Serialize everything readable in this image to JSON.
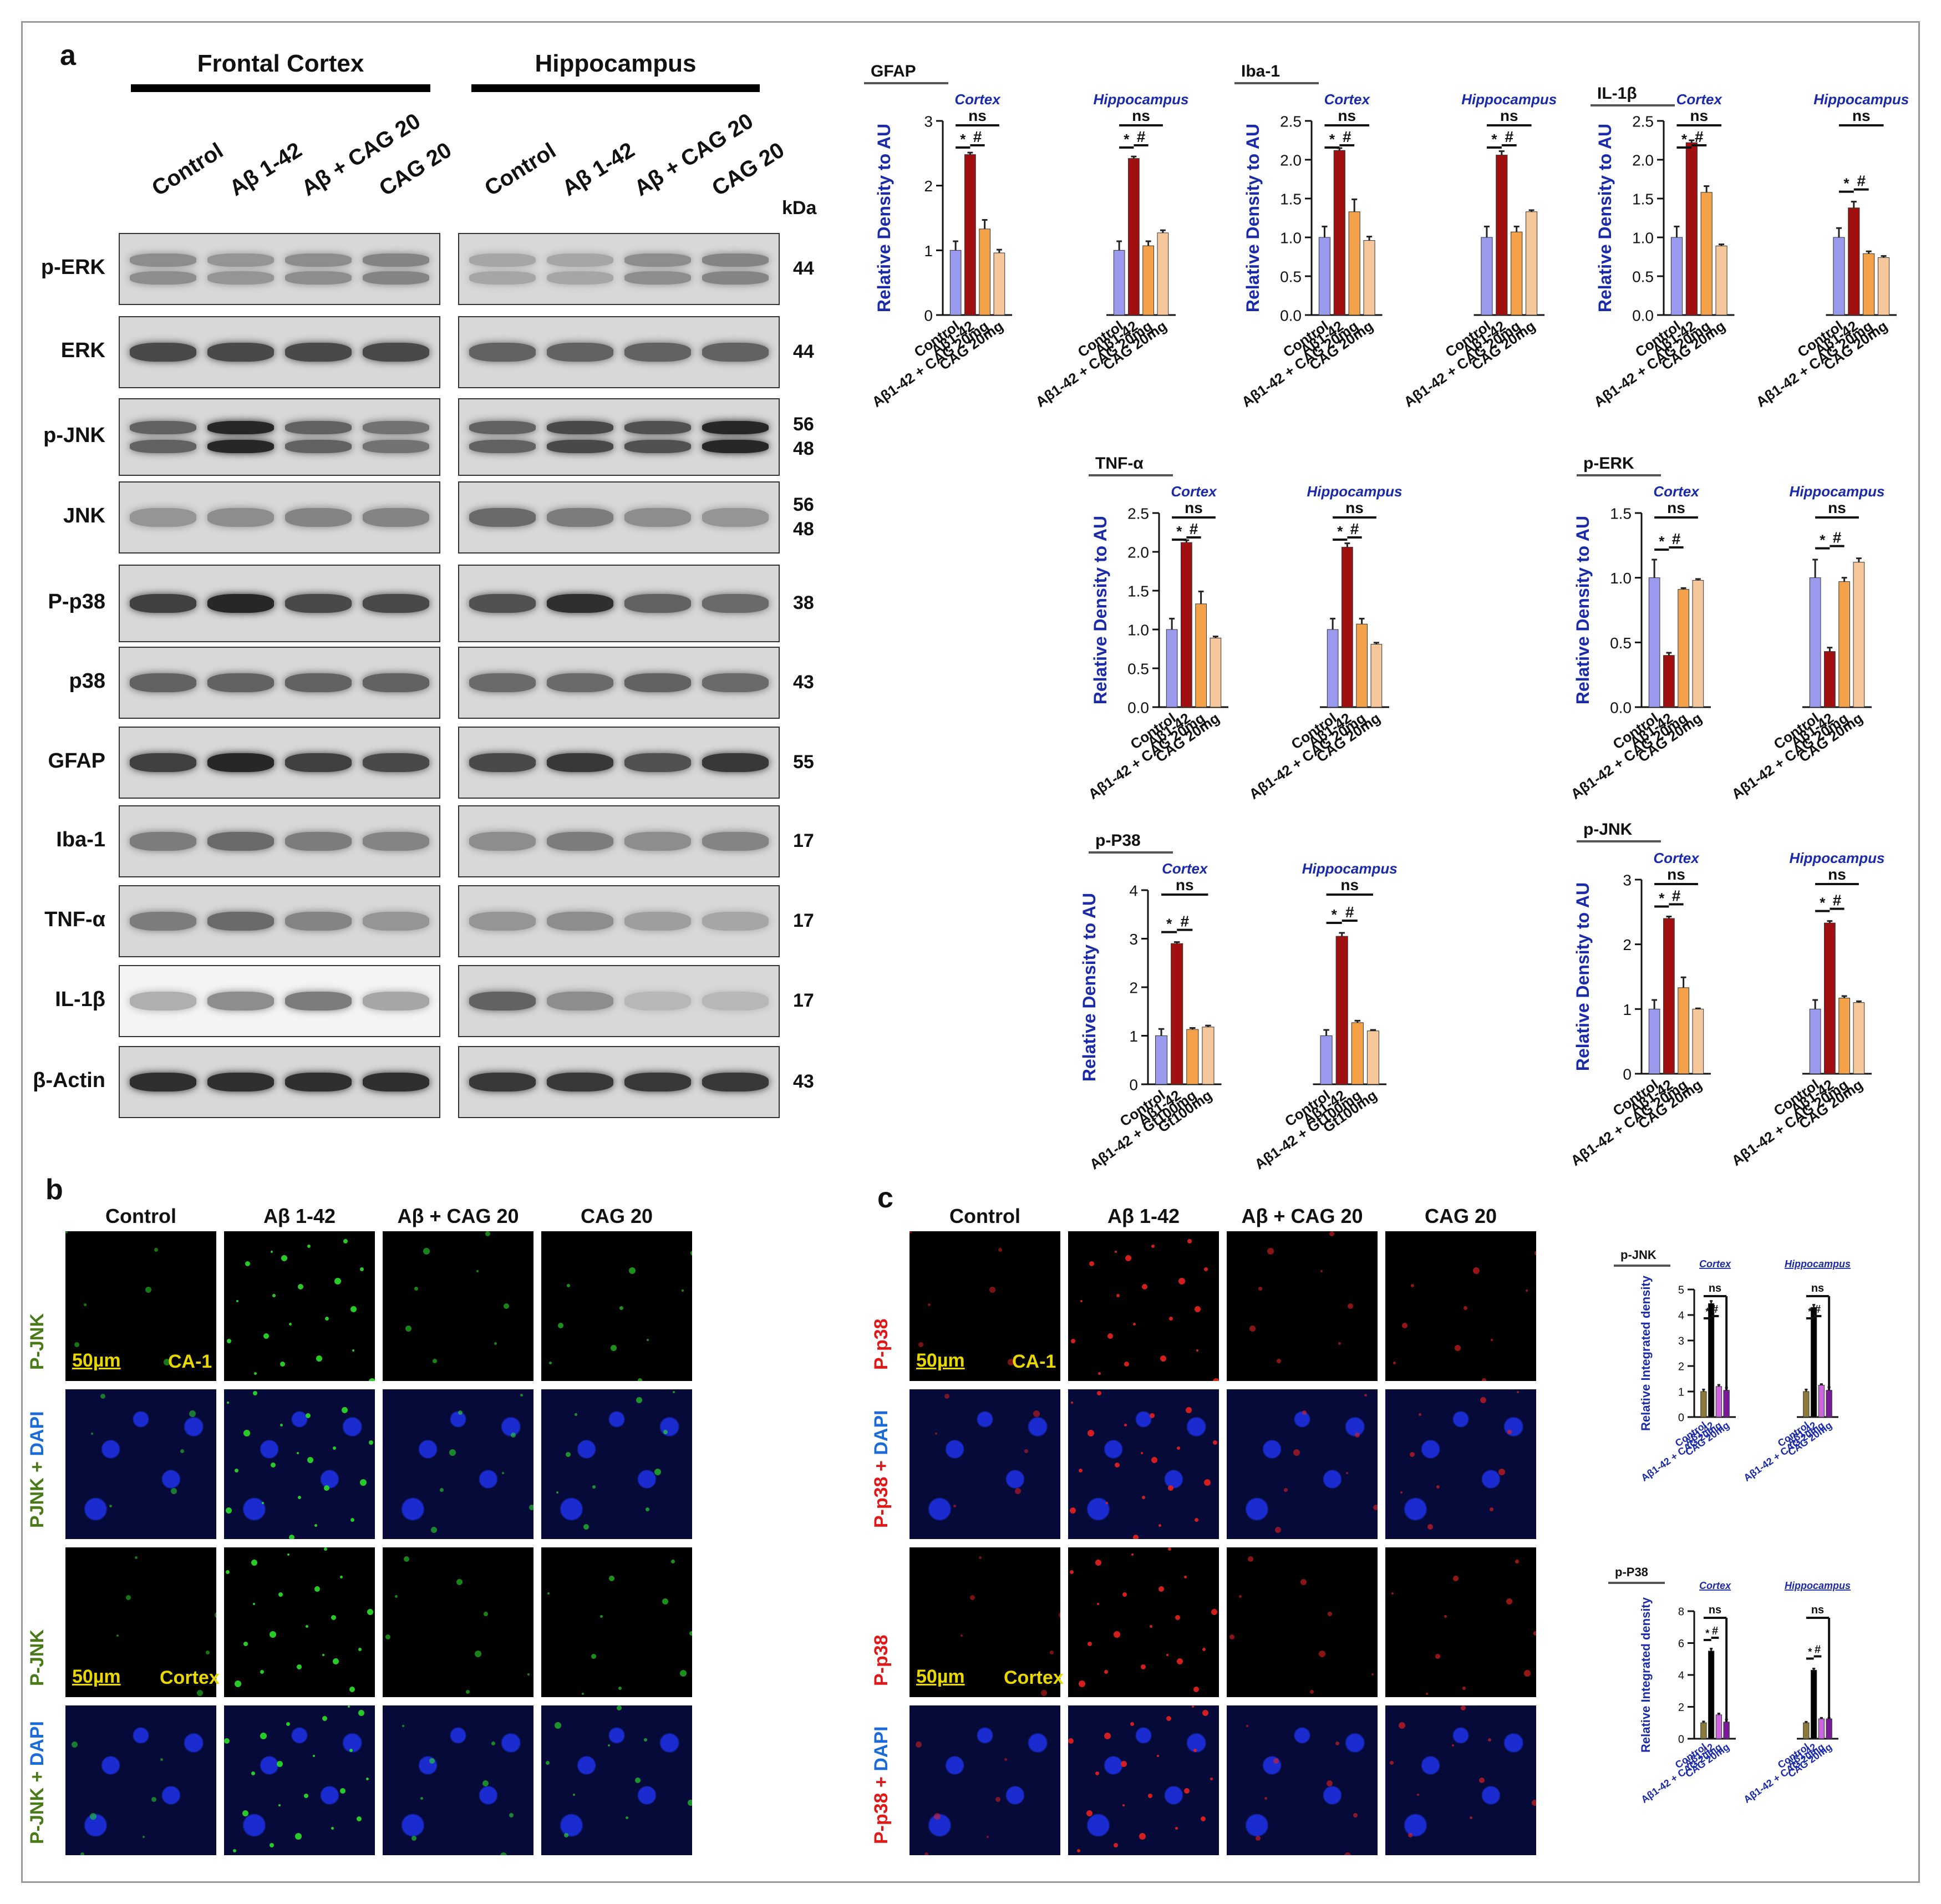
{
  "panels": {
    "a": "a",
    "b": "b",
    "c": "c"
  },
  "western": {
    "regions": [
      "Frontal Cortex",
      "Hippocampus"
    ],
    "lanes": [
      "Control",
      "Aβ 1-42",
      "Aβ + CAG 20",
      "CAG 20"
    ],
    "kda_header": "kDa",
    "rows": [
      {
        "label": "p-ERK",
        "kda": "44"
      },
      {
        "label": "ERK",
        "kda": "44"
      },
      {
        "label": "p-JNK",
        "kda": "56\n48"
      },
      {
        "label": "JNK",
        "kda": "56\n48"
      },
      {
        "label": "P-p38",
        "kda": "38"
      },
      {
        "label": "p38",
        "kda": "43"
      },
      {
        "label": "GFAP",
        "kda": "55"
      },
      {
        "label": "Iba-1",
        "kda": "17"
      },
      {
        "label": "TNF-α",
        "kda": "17"
      },
      {
        "label": "IL-1β",
        "kda": "17"
      },
      {
        "label": "β-Actin",
        "kda": "43"
      }
    ]
  },
  "colors": {
    "control": "#9999ee",
    "abeta": "#a01010",
    "combo": "#f4a24a",
    "cag": "#f6c79a",
    "ctl_b": "#8b7a3a",
    "ab_b": "#000000",
    "combo_b": "#cc66dd",
    "cag_b": "#7a1a99",
    "axis": "#111111",
    "ylabel": "#1a2aa8",
    "group": "#1a2aa8"
  },
  "chart_data": [
    {
      "type": "bar",
      "title": "GFAP",
      "ylabel": "Relative Density to AU",
      "groups": [
        "Cortex",
        "Hippocampus"
      ],
      "categories": [
        "Control",
        "Aβ1-42",
        "Aβ1-42 + CAG 20mg",
        "CAG 20mg"
      ],
      "series": [
        {
          "values": [
            1.0,
            2.48,
            1.33,
            0.96
          ]
        },
        {
          "values": [
            1.0,
            2.42,
            1.07,
            1.27
          ]
        }
      ],
      "errors": [
        [
          0.14,
          0.03,
          0.14,
          0.05
        ],
        [
          0.14,
          0.03,
          0.07,
          0.04
        ]
      ],
      "ylim": [
        0,
        3
      ],
      "yticks": [
        "0",
        "1",
        "2",
        "3"
      ],
      "sig": {
        "star": "*",
        "hash": "#",
        "ns": "ns"
      }
    },
    {
      "type": "bar",
      "title": "Iba-1",
      "ylabel": "Relative Density to AU",
      "groups": [
        "Cortex",
        "Hippocampus"
      ],
      "categories": [
        "Control",
        "Aβ1-42",
        "Aβ1-42 + CAG 20mg",
        "CAG 20mg"
      ],
      "series": [
        {
          "values": [
            1.0,
            2.12,
            1.33,
            0.96
          ]
        },
        {
          "values": [
            1.0,
            2.06,
            1.07,
            1.33
          ]
        }
      ],
      "errors": [
        [
          0.14,
          0.03,
          0.16,
          0.05
        ],
        [
          0.14,
          0.05,
          0.07,
          0.02
        ]
      ],
      "ylim": [
        0,
        2.5
      ],
      "yticks": [
        "0.0",
        "0.5",
        "1.0",
        "1.5",
        "2.0",
        "2.5"
      ],
      "sig": {
        "star": "*",
        "hash": "#",
        "ns": "ns"
      }
    },
    {
      "type": "bar",
      "title": "IL-1β",
      "ylabel": "Relative Density to AU",
      "groups": [
        "Cortex",
        "Hippocampus"
      ],
      "categories": [
        "Control",
        "Aβ1-42",
        "Aβ1-42 + CAG 20mg",
        "CAG 20mg"
      ],
      "series": [
        {
          "values": [
            1.0,
            2.22,
            1.58,
            0.89
          ]
        },
        {
          "values": [
            1.0,
            1.38,
            0.79,
            0.74
          ]
        }
      ],
      "errors": [
        [
          0.14,
          0.03,
          0.08,
          0.02
        ],
        [
          0.12,
          0.08,
          0.03,
          0.02
        ]
      ],
      "ylim": [
        0,
        2.5
      ],
      "yticks": [
        "0.0",
        "0.5",
        "1.0",
        "1.5",
        "2.0",
        "2.5"
      ],
      "sig": {
        "star": "*",
        "hash": "#",
        "ns": "ns"
      }
    },
    {
      "type": "bar",
      "title": "TNF-α",
      "ylabel": "Relative Density to AU",
      "groups": [
        "Cortex",
        "Hippocampus"
      ],
      "categories": [
        "Control",
        "Aβ1-42",
        "Aβ1-42 + CAG 20mg",
        "CAG 20mg"
      ],
      "series": [
        {
          "values": [
            1.0,
            2.12,
            1.33,
            0.89
          ]
        },
        {
          "values": [
            1.0,
            2.06,
            1.07,
            0.81
          ]
        }
      ],
      "errors": [
        [
          0.14,
          0.03,
          0.16,
          0.02
        ],
        [
          0.14,
          0.05,
          0.07,
          0.02
        ]
      ],
      "ylim": [
        0,
        2.5
      ],
      "yticks": [
        "0.0",
        "0.5",
        "1.0",
        "1.5",
        "2.0",
        "2.5"
      ],
      "sig": {
        "star": "*",
        "hash": "#",
        "ns": "ns"
      }
    },
    {
      "type": "bar",
      "title": "p-ERK",
      "ylabel": "Relative Density to AU",
      "groups": [
        "Cortex",
        "Hippocampus"
      ],
      "categories": [
        "Control",
        "Aβ1-42",
        "Aβ1-42 + CAG 20mg",
        "CAG 20mg"
      ],
      "series": [
        {
          "values": [
            1.0,
            0.4,
            0.91,
            0.98
          ]
        },
        {
          "values": [
            1.0,
            0.43,
            0.97,
            1.12
          ]
        }
      ],
      "errors": [
        [
          0.14,
          0.02,
          0.01,
          0.01
        ],
        [
          0.14,
          0.03,
          0.03,
          0.03
        ]
      ],
      "ylim": [
        0,
        1.5
      ],
      "yticks": [
        "0.0",
        "0.5",
        "1.0",
        "1.5"
      ],
      "sig": {
        "star": "*",
        "hash": "#",
        "ns": "ns"
      }
    },
    {
      "type": "bar",
      "title": "p-P38",
      "ylabel": "Relative Density to AU",
      "groups": [
        "Cortex",
        "Hippocampus"
      ],
      "categories": [
        "Control",
        "Aβ1-42",
        "Aβ1-42 + Gt100mg",
        "Gt100mg"
      ],
      "series": [
        {
          "values": [
            1.0,
            2.9,
            1.13,
            1.18
          ]
        },
        {
          "values": [
            1.0,
            3.05,
            1.27,
            1.1
          ]
        }
      ],
      "errors": [
        [
          0.14,
          0.03,
          0.03,
          0.03
        ],
        [
          0.12,
          0.07,
          0.04,
          0.02
        ]
      ],
      "ylim": [
        0,
        4
      ],
      "yticks": [
        "0",
        "1",
        "2",
        "3",
        "4"
      ],
      "sig": {
        "star": "*",
        "hash": "#",
        "ns": "ns"
      }
    },
    {
      "type": "bar",
      "title": "p-JNK",
      "ylabel": "Relative Density to AU",
      "groups": [
        "Cortex",
        "Hippocampus"
      ],
      "categories": [
        "Control",
        "Aβ1-42",
        "Aβ1-42 + CAG 20mg",
        "CAG 20mg"
      ],
      "series": [
        {
          "values": [
            1.0,
            2.4,
            1.33,
            1.0
          ]
        },
        {
          "values": [
            1.0,
            2.33,
            1.17,
            1.1
          ]
        }
      ],
      "errors": [
        [
          0.14,
          0.03,
          0.16,
          0.01
        ],
        [
          0.14,
          0.03,
          0.03,
          0.02
        ]
      ],
      "ylim": [
        0,
        3
      ],
      "yticks": [
        "0",
        "1",
        "2",
        "3"
      ],
      "sig": {
        "star": "*",
        "hash": "#",
        "ns": "ns"
      }
    },
    {
      "type": "bar",
      "title": "p-JNK",
      "ylabel": "Relative Integrated density",
      "groups": [
        "Cortex",
        "Hippocampus"
      ],
      "categories": [
        "Control",
        "Aβ1-42",
        "Aβ1-42 + CAG 20mg",
        "CAG 20mg"
      ],
      "series": [
        {
          "values": [
            1.0,
            4.45,
            1.2,
            1.05
          ]
        },
        {
          "values": [
            1.0,
            4.3,
            1.25,
            1.05
          ]
        }
      ],
      "errors": [
        [
          0.08,
          0.1,
          0.06,
          0.1
        ],
        [
          0.08,
          0.1,
          0.04,
          0.12
        ]
      ],
      "ylim": [
        0,
        5
      ],
      "yticks": [
        "0",
        "1",
        "2",
        "3",
        "4",
        "5"
      ],
      "sig": {
        "star": "*",
        "hash": "#",
        "ns": "ns"
      }
    },
    {
      "type": "bar",
      "title": "p-P38",
      "ylabel": "Relative Integrated density",
      "groups": [
        "Cortex",
        "Hippocampus"
      ],
      "categories": [
        "Control",
        "Aβ1-42",
        "Aβ1-42 + CAG 20mg",
        "CAG 20mg"
      ],
      "series": [
        {
          "values": [
            1.0,
            5.5,
            1.5,
            1.05
          ]
        },
        {
          "values": [
            1.0,
            4.3,
            1.25,
            1.25
          ]
        }
      ],
      "errors": [
        [
          0.08,
          0.15,
          0.08,
          0.15
        ],
        [
          0.06,
          0.1,
          0.06,
          0.06
        ]
      ],
      "ylim": [
        0,
        8
      ],
      "yticks": [
        "0",
        "2",
        "4",
        "6",
        "8"
      ],
      "sig": {
        "star": "*",
        "hash": "#",
        "ns": "ns"
      }
    }
  ],
  "micro_b": {
    "columns": [
      "Control",
      "Aβ 1-42",
      "Aβ + CAG 20",
      "CAG 20"
    ],
    "rows": [
      "P-JNK",
      "PJNK + DAPI",
      "P-JNK",
      "P-JNK + DAPI"
    ],
    "scale": "50µm",
    "tags": [
      "CA-1",
      "Cortex"
    ]
  },
  "micro_c": {
    "columns": [
      "Control",
      "Aβ 1-42",
      "Aβ + CAG 20",
      "CAG 20"
    ],
    "rows": [
      "P-p38",
      "P-p38 + DAPI",
      "P-p38",
      "P-p38 + DAPI"
    ],
    "scale": "50µm",
    "tags": [
      "CA-1",
      "Cortex"
    ]
  }
}
